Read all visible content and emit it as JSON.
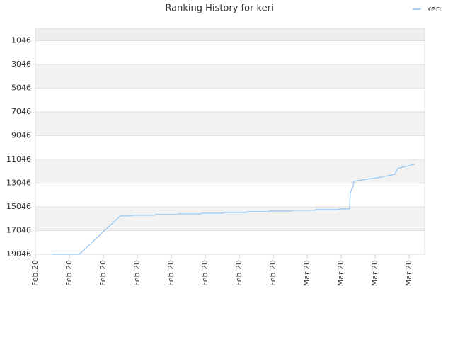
{
  "chart_data": {
    "type": "line",
    "title": "Ranking History for keri",
    "x": [
      0.48,
      1.29,
      1.5,
      2,
      2.5,
      2.83,
      2.88,
      3.5,
      3.54,
      4.17,
      4.21,
      4.88,
      4.92,
      5.54,
      5.58,
      6.21,
      6.25,
      6.88,
      6.92,
      7.54,
      7.58,
      8.21,
      8.25,
      8.92,
      8.96,
      9.25,
      9.27,
      9.35,
      9.38,
      9.79,
      10.21,
      10.58,
      10.67,
      11.17
    ],
    "series": [
      {
        "name": "keri",
        "color": "#90c4f2",
        "values": [
          19046,
          19046,
          18508,
          17132,
          15817,
          15817,
          15757,
          15757,
          15697,
          15697,
          15638,
          15638,
          15578,
          15578,
          15518,
          15518,
          15458,
          15458,
          15398,
          15398,
          15338,
          15338,
          15279,
          15279,
          15219,
          15219,
          13843,
          13365,
          12887,
          12707,
          12528,
          12289,
          11811,
          11452
        ]
      }
    ],
    "xlim": [
      0,
      11.46
    ],
    "xticks": [
      {
        "value": 0,
        "label": "Feb.20"
      },
      {
        "value": 1,
        "label": "Feb.20"
      },
      {
        "value": 2,
        "label": "Feb.20"
      },
      {
        "value": 3,
        "label": "Feb.20"
      },
      {
        "value": 4,
        "label": "Feb.20"
      },
      {
        "value": 5,
        "label": "Feb.20"
      },
      {
        "value": 6,
        "label": "Feb.20"
      },
      {
        "value": 7,
        "label": "Feb.20"
      },
      {
        "value": 8,
        "label": "Mar.20"
      },
      {
        "value": 9,
        "label": "Mar.20"
      },
      {
        "value": 10,
        "label": "Mar.20"
      },
      {
        "value": 11,
        "label": "Mar.20"
      }
    ],
    "ylim": [
      19046,
      0
    ],
    "yticks": [
      1046,
      3046,
      5046,
      7046,
      9046,
      11046,
      13046,
      15046,
      17046,
      19046
    ],
    "grid": true,
    "legend": "top-right"
  }
}
